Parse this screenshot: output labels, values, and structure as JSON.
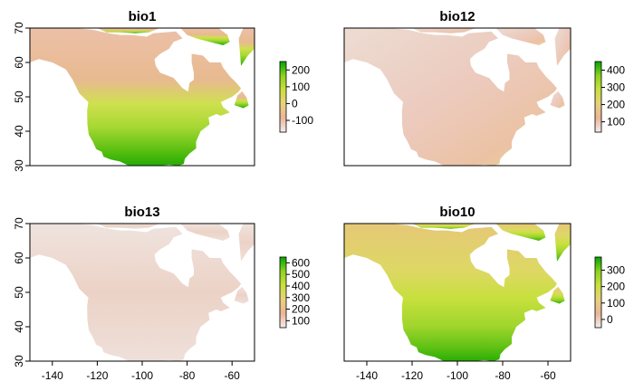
{
  "chart_data": [
    {
      "type": "heatmap",
      "title": "bio1",
      "x_range": [
        -150,
        -50
      ],
      "ylim": [
        30,
        70
      ],
      "yticks": [
        30,
        40,
        50,
        60,
        70
      ],
      "xticks": [],
      "legend": {
        "min": -170,
        "max": 250,
        "ticks": [
          -100,
          0,
          100,
          200
        ]
      },
      "colors": [
        "#f1eeee",
        "#ebb596",
        "#e9d27a",
        "#c9e03c",
        "#8cd21e",
        "#00a600"
      ]
    },
    {
      "type": "heatmap",
      "title": "bio12",
      "x_range": [
        -150,
        -50
      ],
      "ylim": [
        30,
        70
      ],
      "yticks": [],
      "xticks": [],
      "legend": {
        "min": 40,
        "max": 450,
        "ticks": [
          100,
          200,
          300,
          400
        ]
      },
      "colors": [
        "#f1eeee",
        "#ebb596",
        "#e9d27a",
        "#c9e03c",
        "#8cd21e",
        "#00a600"
      ]
    },
    {
      "type": "heatmap",
      "title": "bio13",
      "x_range": [
        -150,
        -50
      ],
      "ylim": [
        30,
        70
      ],
      "yticks": [
        30,
        40,
        50,
        60,
        70
      ],
      "xticks": [
        -140,
        -120,
        -100,
        -80,
        -60
      ],
      "legend": {
        "min": 40,
        "max": 650,
        "ticks": [
          100,
          200,
          300,
          400,
          500,
          600
        ]
      },
      "colors": [
        "#f1eeee",
        "#ebb596",
        "#e9d27a",
        "#c9e03c",
        "#8cd21e",
        "#00a600"
      ]
    },
    {
      "type": "heatmap",
      "title": "bio10",
      "x_range": [
        -150,
        -50
      ],
      "ylim": [
        30,
        70
      ],
      "yticks": [],
      "xticks": [
        -140,
        -120,
        -100,
        -80,
        -60
      ],
      "legend": {
        "min": -50,
        "max": 380,
        "ticks": [
          0,
          100,
          200,
          300
        ]
      },
      "colors": [
        "#f1eeee",
        "#ebb596",
        "#e9d27a",
        "#c9e03c",
        "#8cd21e",
        "#00a600"
      ]
    }
  ]
}
